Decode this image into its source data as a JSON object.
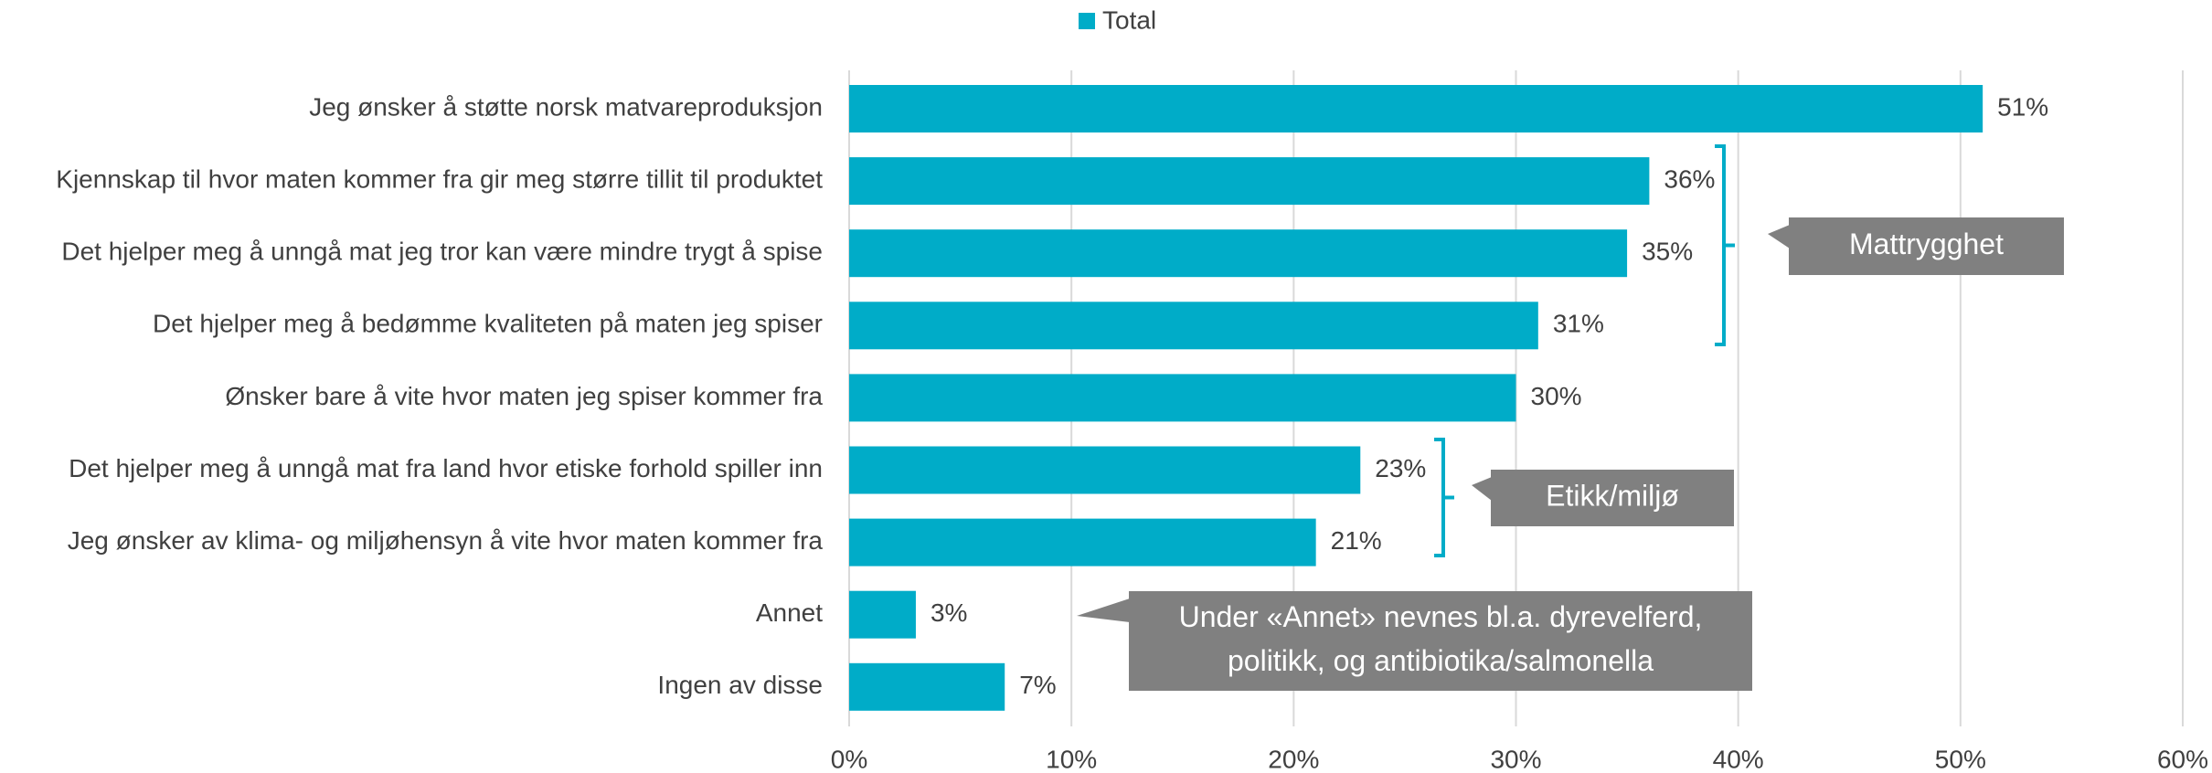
{
  "chart_data": {
    "type": "bar",
    "orientation": "horizontal",
    "categories": [
      "Jeg ønsker å støtte norsk matvareproduksjon",
      "Kjennskap til hvor maten kommer fra gir meg større tillit til produktet",
      "Det hjelper meg å unngå mat jeg tror kan være mindre trygt å spise",
      "Det hjelper meg å bedømme kvaliteten på maten jeg spiser",
      "Ønsker bare å vite hvor maten jeg spiser kommer fra",
      "Det hjelper meg å unngå mat fra land hvor etiske forhold spiller inn",
      "Jeg ønsker av klima- og miljøhensyn å vite hvor maten kommer fra",
      "Annet",
      "Ingen av disse"
    ],
    "series": [
      {
        "name": "Total",
        "color": "#00acc8",
        "values": [
          51,
          36,
          35,
          31,
          30,
          23,
          21,
          3,
          7
        ],
        "value_labels": [
          "51%",
          "36%",
          "35%",
          "31%",
          "30%",
          "23%",
          "21%",
          "3%",
          "7%"
        ]
      }
    ],
    "xlim": [
      0,
      60
    ],
    "xticks": [
      {
        "value": 0,
        "label": "0%"
      },
      {
        "value": 10,
        "label": "10%"
      },
      {
        "value": 20,
        "label": "20%"
      },
      {
        "value": 30,
        "label": "30%"
      },
      {
        "value": 40,
        "label": "40%"
      },
      {
        "value": 50,
        "label": "50%"
      },
      {
        "value": 60,
        "label": "60%"
      }
    ],
    "grid": true,
    "legend": "top",
    "annotations": [
      {
        "lines": [
          "Mattrygghet"
        ]
      },
      {
        "lines": [
          "Etikk/miljø"
        ]
      },
      {
        "lines": [
          "Under «Annet» nevnes bl.a. dyrevelferd,",
          "politikk, og antibiotika/salmonella"
        ]
      }
    ]
  }
}
